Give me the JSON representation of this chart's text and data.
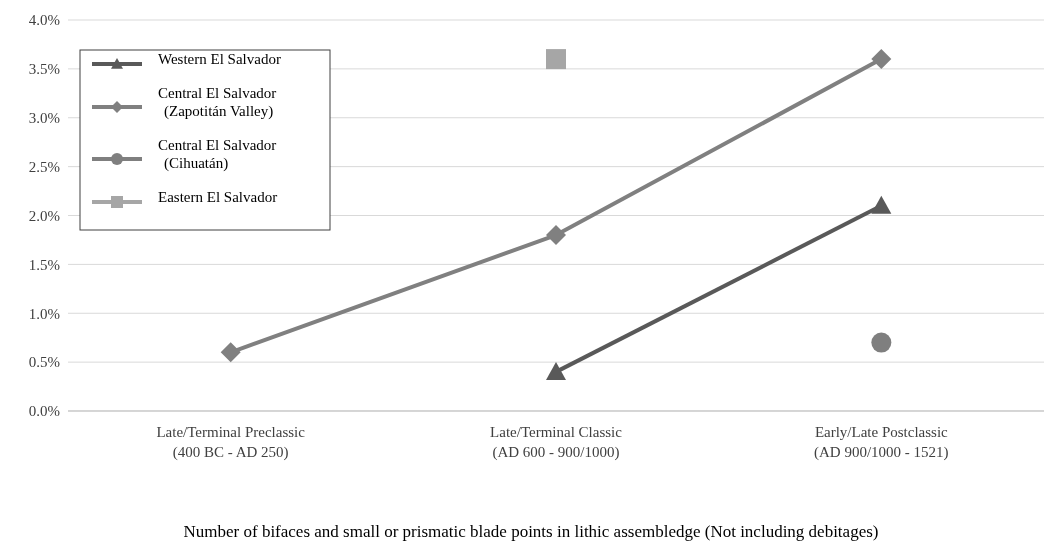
{
  "chart_data": {
    "type": "line",
    "categories": [
      "Late/Terminal Preclassic\n(400 BC - AD 250)",
      "Late/Terminal Classic\n(AD 600 - 900/1000)",
      "Early/Late Postclassic\n(AD 900/1000 - 1521)"
    ],
    "series": [
      {
        "name": "Western El Salvador",
        "color": "#595959",
        "marker": "triangle",
        "values": [
          null,
          0.4,
          2.1
        ]
      },
      {
        "name": "Central El Salvador (Zapotitán Valley)",
        "color": "#808080",
        "marker": "diamond",
        "values": [
          0.6,
          1.8,
          3.6
        ]
      },
      {
        "name": "Central El Salvador (Cihuatán)",
        "color": "#7f7f7f",
        "marker": "circle",
        "values": [
          null,
          null,
          0.7
        ]
      },
      {
        "name": "Eastern El Salvador",
        "color": "#a6a6a6",
        "marker": "square",
        "values": [
          null,
          3.6,
          null
        ]
      }
    ],
    "ylim": [
      0,
      4
    ],
    "yticks": [
      {
        "value": 0,
        "label": "0.0%"
      },
      {
        "value": 0.5,
        "label": "0.5%"
      },
      {
        "value": 1,
        "label": "1.0%"
      },
      {
        "value": 1.5,
        "label": "1.5%"
      },
      {
        "value": 2,
        "label": "2.0%"
      },
      {
        "value": 2.5,
        "label": "2.5%"
      },
      {
        "value": 3,
        "label": "3.0%"
      },
      {
        "value": 3.5,
        "label": "3.5%"
      },
      {
        "value": 4,
        "label": "4.0%"
      }
    ],
    "grid": "y",
    "legend": "top left",
    "line_style": "solid",
    "xlabel": "Number of bifaces and small or prismatic blade points in lithic assembledge (Not including debitages)"
  }
}
